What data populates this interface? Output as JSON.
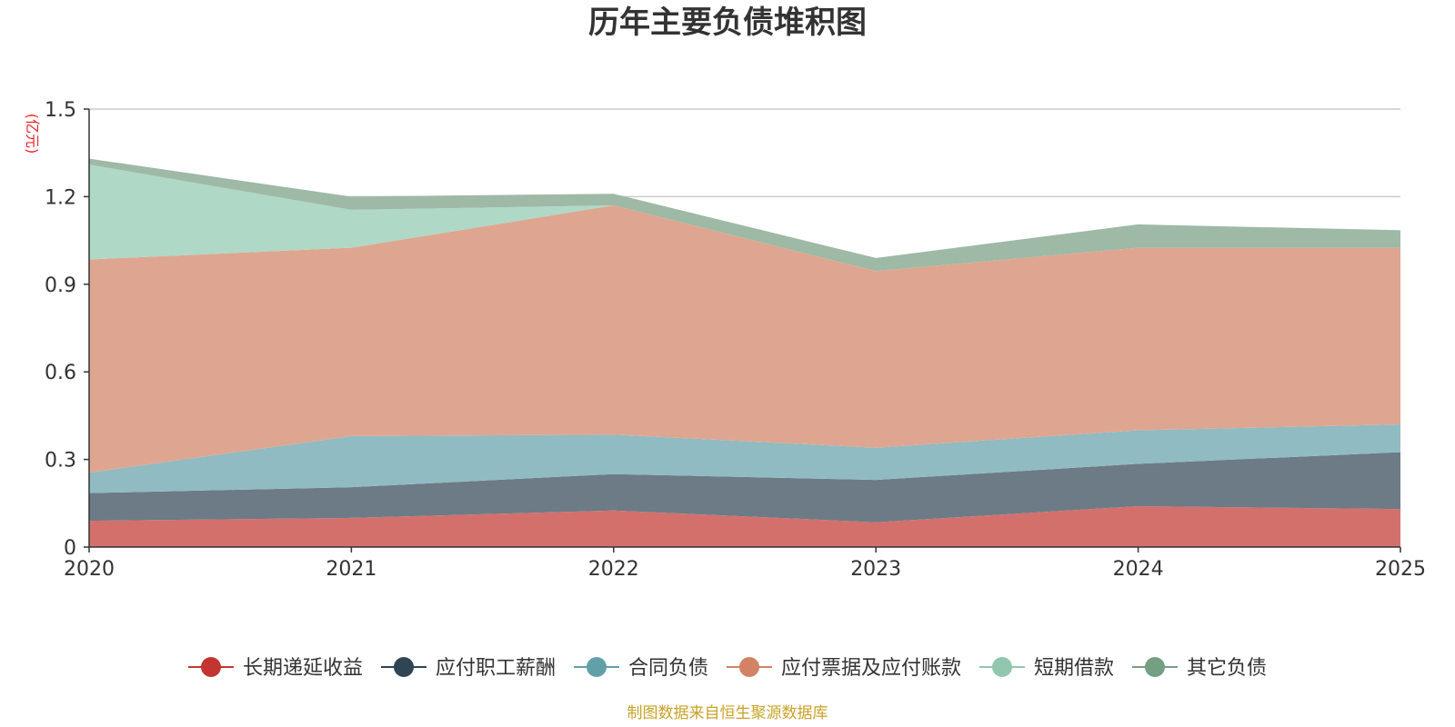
{
  "chart_data": {
    "type": "area",
    "stacked": true,
    "title": "历年主要负债堆积图",
    "unit_label": "(亿元)",
    "source": "制图数据来自恒生聚源数据库",
    "categories": [
      "2020",
      "2021",
      "2022",
      "2023",
      "2024",
      "2025"
    ],
    "y_ticks": [
      "0",
      "0.3",
      "0.6",
      "0.9",
      "1.2",
      "1.5"
    ],
    "ylim": [
      0,
      1.5
    ],
    "grid": true,
    "legend_position": "bottom",
    "series": [
      {
        "name": "长期递延收益",
        "color": "#c23531",
        "fill": "#d4706c",
        "values": [
          0.09,
          0.1,
          0.125,
          0.085,
          0.14,
          0.13
        ]
      },
      {
        "name": "应付职工薪酬",
        "color": "#2f4554",
        "fill": "#6d7b86",
        "values": [
          0.095,
          0.105,
          0.125,
          0.145,
          0.145,
          0.195
        ]
      },
      {
        "name": "合同负债",
        "color": "#61a0a8",
        "fill": "#90bbc2",
        "values": [
          0.07,
          0.175,
          0.135,
          0.11,
          0.115,
          0.095
        ]
      },
      {
        "name": "应付票据及应付账款",
        "color": "#d48265",
        "fill": "#dea690",
        "values": [
          0.73,
          0.645,
          0.785,
          0.605,
          0.625,
          0.605
        ]
      },
      {
        "name": "短期借款",
        "color": "#91c7ae",
        "fill": "#b0d8c6",
        "values": [
          0.325,
          0.13,
          0.0,
          0.0,
          0.0,
          0.0
        ]
      },
      {
        "name": "其它负债",
        "color": "#749f83",
        "fill": "#9eb9a6",
        "values": [
          0.02,
          0.045,
          0.04,
          0.045,
          0.08,
          0.06
        ]
      }
    ]
  }
}
